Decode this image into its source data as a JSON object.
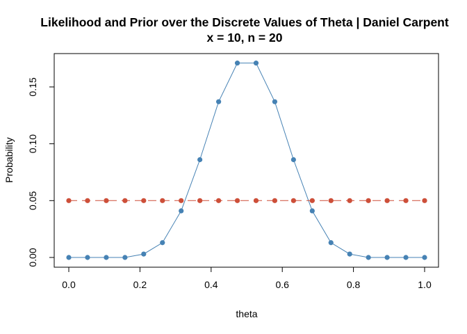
{
  "chart_data": {
    "type": "line",
    "title": "Likelihood and Prior over the Discrete Values of Theta | Daniel Carpent",
    "subtitle": "x = 10, n = 20",
    "xlabel": "theta",
    "ylabel": "Probability",
    "xlim": [
      0,
      1
    ],
    "ylim": [
      0,
      0.172
    ],
    "x_ticks": [
      "0.0",
      "0.2",
      "0.4",
      "0.6",
      "0.8",
      "1.0"
    ],
    "x_tick_values": [
      0,
      0.2,
      0.4,
      0.6,
      0.8,
      1.0
    ],
    "y_ticks": [
      "0.00",
      "0.05",
      "0.10",
      "0.15"
    ],
    "y_tick_values": [
      0,
      0.05,
      0.1,
      0.15
    ],
    "grid": false,
    "x": [
      0.0,
      0.0526,
      0.1053,
      0.1579,
      0.2105,
      0.2632,
      0.3158,
      0.3684,
      0.4211,
      0.4737,
      0.5263,
      0.5789,
      0.6316,
      0.6842,
      0.7368,
      0.7895,
      0.8421,
      0.8947,
      0.9474,
      1.0
    ],
    "series": [
      {
        "color": "#4682b4",
        "line_style": "solid",
        "values": [
          0.0,
          0.0,
          0.0,
          0.0,
          0.003,
          0.013,
          0.041,
          0.086,
          0.137,
          0.171,
          0.171,
          0.137,
          0.086,
          0.041,
          0.013,
          0.003,
          0.0,
          0.0,
          0.0,
          0.0
        ]
      },
      {
        "color": "#cd4f39",
        "line_style": "dashed",
        "values": [
          0.05,
          0.05,
          0.05,
          0.05,
          0.05,
          0.05,
          0.05,
          0.05,
          0.05,
          0.05,
          0.05,
          0.05,
          0.05,
          0.05,
          0.05,
          0.05,
          0.05,
          0.05,
          0.05,
          0.05
        ]
      }
    ]
  }
}
